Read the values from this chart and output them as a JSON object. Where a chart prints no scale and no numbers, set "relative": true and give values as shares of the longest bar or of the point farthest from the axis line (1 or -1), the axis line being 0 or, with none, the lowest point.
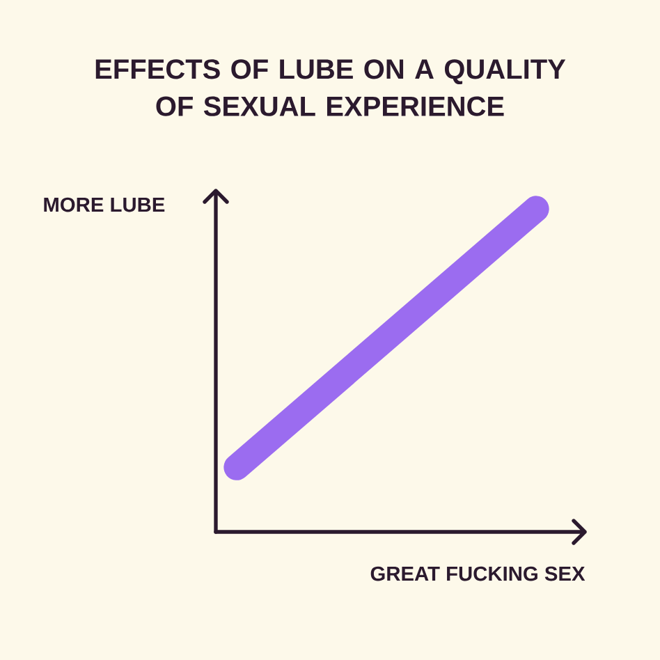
{
  "chart_data": {
    "type": "line",
    "title": "EFFECTS OF LUBE ON A QUALITY OF SEXUAL EXPERIENCE",
    "xlabel": "GREAT FUCKING SEX",
    "ylabel": "MORE LUBE",
    "relative": true,
    "categories": [
      null,
      null
    ],
    "series": [
      {
        "color": "#9b6cf0",
        "values": [
          0.2,
          1
        ]
      }
    ]
  }
}
